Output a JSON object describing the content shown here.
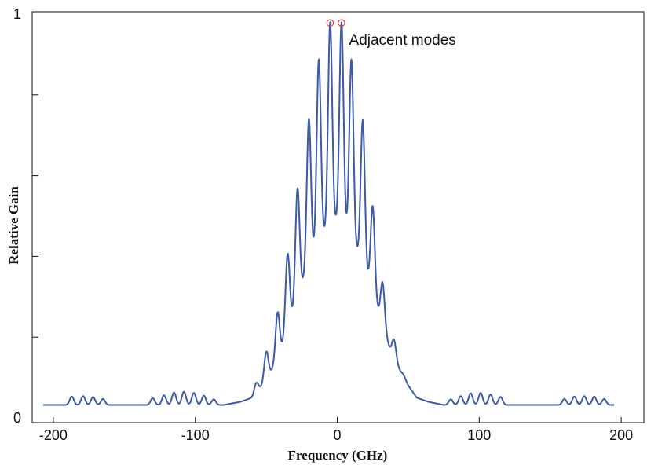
{
  "chart_data": {
    "type": "line",
    "title": "",
    "xlabel": "Frequency (GHz)",
    "ylabel": "Relative Gain",
    "xlim": [
      -205,
      215
    ],
    "ylim": [
      0,
      1
    ],
    "x_ticks": [
      -200,
      -100,
      0,
      100,
      200
    ],
    "x_tick_labels": [
      "-200",
      "-100",
      "0",
      "100",
      "200"
    ],
    "y_ticks": [
      0,
      0.2,
      0.4,
      0.6,
      0.8,
      1
    ],
    "y_tick_labels": [
      "0",
      "",
      "",
      "",
      "",
      "1"
    ],
    "grid": false,
    "legend": "none",
    "colors": {
      "line": "#3d5aa6",
      "marker": "#e23b3b",
      "axis": "#111111"
    },
    "series": [
      {
        "comb_peaks": [
          [
            -187,
            0.053
          ],
          [
            -179,
            0.054
          ],
          [
            -172,
            0.052
          ],
          [
            -165,
            0.047
          ],
          [
            -130,
            0.049
          ],
          [
            -122,
            0.056
          ],
          [
            -115,
            0.063
          ],
          [
            -108,
            0.065
          ],
          [
            -101,
            0.062
          ],
          [
            -94,
            0.055
          ],
          [
            -87,
            0.046
          ],
          [
            -57,
            0.087
          ],
          [
            -50,
            0.164
          ],
          [
            -42,
            0.262
          ],
          [
            -35,
            0.407
          ],
          [
            -28,
            0.569
          ],
          [
            -20,
            0.741
          ],
          [
            -13,
            0.888
          ],
          [
            -5,
            0.98
          ],
          [
            3,
            0.98
          ],
          [
            10,
            0.888
          ],
          [
            18,
            0.738
          ],
          [
            25,
            0.525
          ],
          [
            32,
            0.335
          ],
          [
            40,
            0.194
          ],
          [
            47,
            0.105
          ],
          [
            54,
            0.058
          ],
          [
            80,
            0.046
          ],
          [
            87,
            0.054
          ],
          [
            94,
            0.061
          ],
          [
            101,
            0.062
          ],
          [
            108,
            0.058
          ],
          [
            115,
            0.052
          ],
          [
            160,
            0.047
          ],
          [
            167,
            0.053
          ],
          [
            174,
            0.054
          ],
          [
            181,
            0.053
          ],
          [
            188,
            0.047
          ]
        ],
        "baseline": [
          [
            -205,
            0.032
          ],
          [
            -140,
            0.032
          ],
          [
            -80,
            0.032
          ],
          [
            -68,
            0.04
          ],
          [
            -60,
            0.05
          ],
          [
            -50,
            0.09
          ],
          [
            -40,
            0.16
          ],
          [
            -30,
            0.27
          ],
          [
            -20,
            0.38
          ],
          [
            -10,
            0.45
          ],
          [
            -1,
            0.48
          ],
          [
            8,
            0.45
          ],
          [
            18,
            0.38
          ],
          [
            28,
            0.27
          ],
          [
            38,
            0.16
          ],
          [
            48,
            0.09
          ],
          [
            56,
            0.05
          ],
          [
            64,
            0.04
          ],
          [
            75,
            0.032
          ],
          [
            195,
            0.032
          ]
        ]
      }
    ],
    "annotations": [
      {
        "text": "Adjacent modes",
        "x": 5,
        "y": 0.955,
        "markers": [
          [
            -5,
            0.98
          ],
          [
            3,
            0.98
          ]
        ]
      }
    ]
  }
}
